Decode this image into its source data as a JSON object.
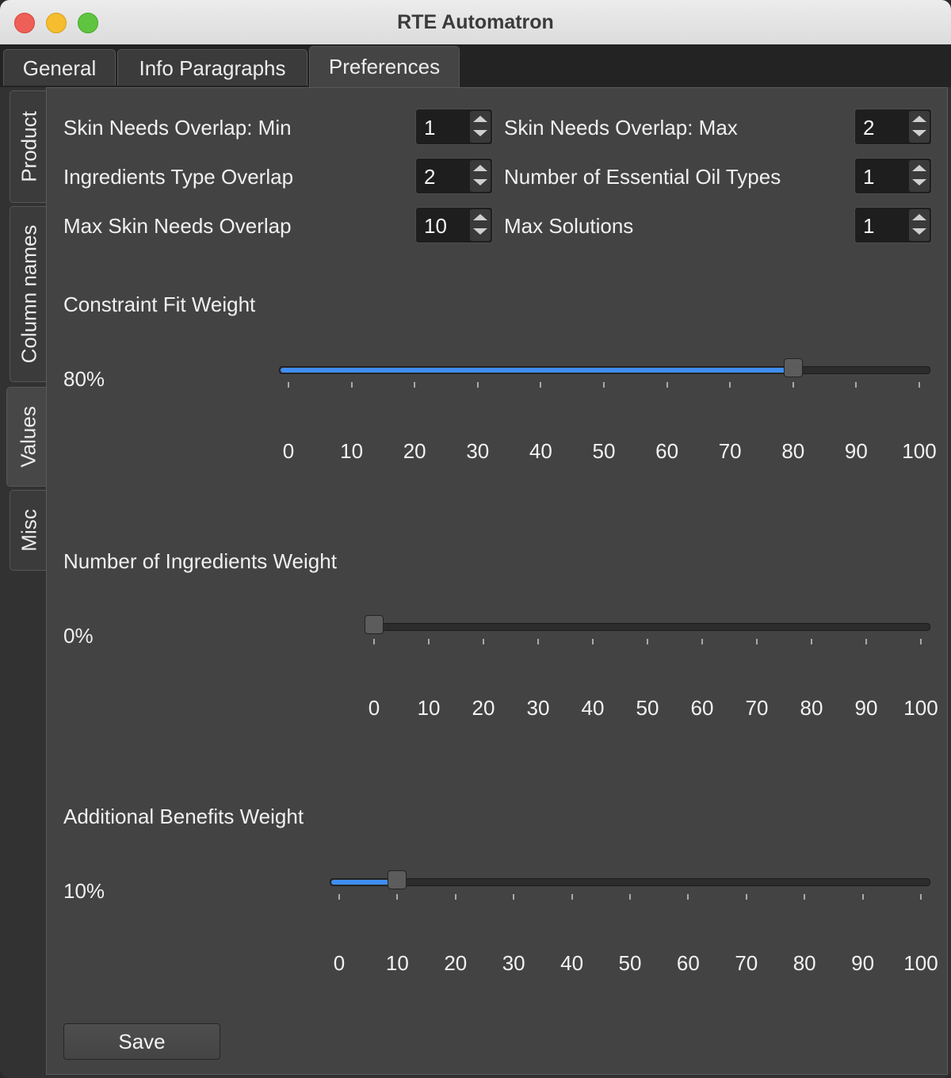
{
  "window": {
    "title": "RTE Automatron"
  },
  "tabs": [
    {
      "label": "General",
      "active": false
    },
    {
      "label": "Info Paragraphs",
      "active": false
    },
    {
      "label": "Preferences",
      "active": true
    }
  ],
  "side_tabs": [
    {
      "label": "Product",
      "active": false
    },
    {
      "label": "Column names",
      "active": false
    },
    {
      "label": "Values",
      "active": true
    },
    {
      "label": "Misc",
      "active": false
    }
  ],
  "fields": {
    "skin_needs_min": {
      "label": "Skin Needs Overlap: Min",
      "value": "1"
    },
    "skin_needs_max": {
      "label": "Skin Needs Overlap: Max",
      "value": "2"
    },
    "ingredients_type_overlap": {
      "label": "Ingredients Type Overlap",
      "value": "2"
    },
    "essential_oil_types": {
      "label": "Number of Essential Oil Types",
      "value": "1"
    },
    "max_skin_needs_overlap": {
      "label": "Max Skin Needs Overlap",
      "value": "10"
    },
    "max_solutions": {
      "label": "Max Solutions",
      "value": "1"
    }
  },
  "sliders": {
    "constraint_fit": {
      "title": "Constraint Fit Weight",
      "value_text": "80%",
      "value": 80
    },
    "ingredients_count": {
      "title": "Number of Ingredients Weight",
      "value_text": "0%",
      "value": 0
    },
    "additional_benefits": {
      "title": "Additional Benefits Weight",
      "value_text": "10%",
      "value": 10
    }
  },
  "slider_scale": [
    "0",
    "10",
    "20",
    "30",
    "40",
    "50",
    "60",
    "70",
    "80",
    "90",
    "100"
  ],
  "buttons": {
    "save": "Save"
  }
}
